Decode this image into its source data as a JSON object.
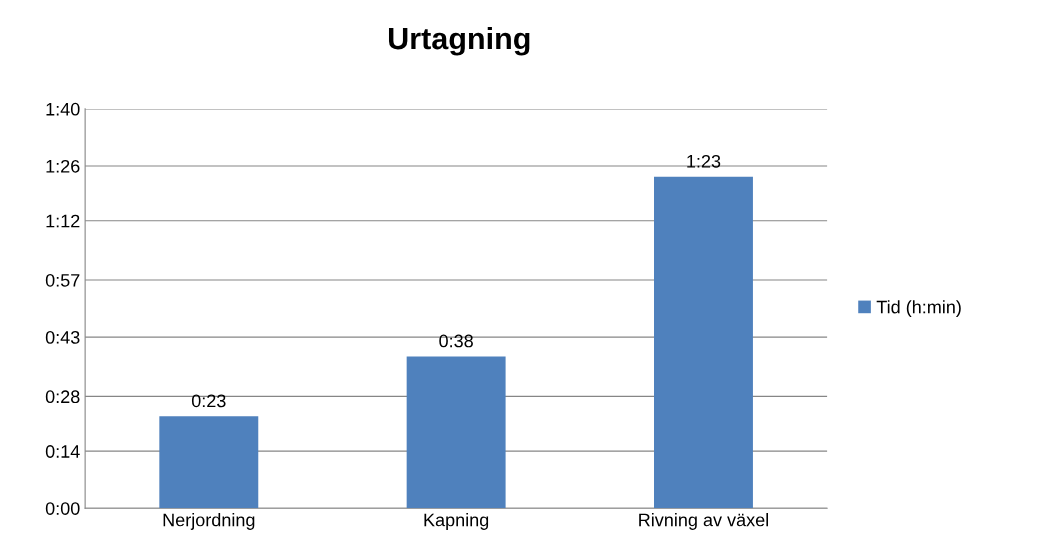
{
  "chart_data": {
    "type": "bar",
    "title": "Urtagning",
    "categories": [
      "Nerjordning",
      "Kapning",
      "Rivning av växel"
    ],
    "series": [
      {
        "name": "Tid (h:min)",
        "color": "#4f81bd",
        "values": [
          0.3833,
          0.6333,
          1.3833
        ],
        "value_labels": [
          "0:23",
          "0:38",
          "1:23"
        ]
      }
    ],
    "ylim": [
      0,
      1.6667
    ],
    "yticks": [
      {
        "value": 0,
        "label": "0:00"
      },
      {
        "value": 0.2381,
        "label": "0:14"
      },
      {
        "value": 0.4667,
        "label": "0:28"
      },
      {
        "value": 0.7143,
        "label": "0:43"
      },
      {
        "value": 0.9524,
        "label": "0:57"
      },
      {
        "value": 1.2,
        "label": "1:12"
      },
      {
        "value": 1.4286,
        "label": "1:26"
      },
      {
        "value": 1.6667,
        "label": "1:40"
      }
    ],
    "grid": "y",
    "legend": "right"
  }
}
